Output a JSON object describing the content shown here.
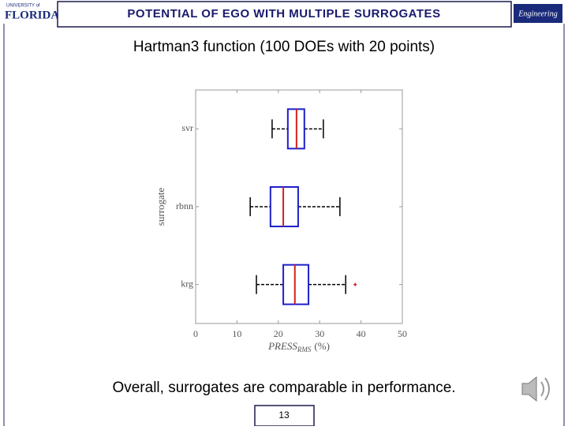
{
  "header": {
    "title": "POTENTIAL OF EGO WITH MULTIPLE SURROGATES",
    "logo_left_top": "UNIVERSITY of",
    "logo_left_main": "FLORIDA",
    "logo_right": "Engineering"
  },
  "subtitle": "Hartman3 function (100 DOEs with 20 points)",
  "conclusion": "Overall, surrogates are comparable in performance.",
  "page_number": "13",
  "chart_data": {
    "type": "boxplot",
    "orientation": "horizontal",
    "ylabel": "surrogate",
    "xlabel": {
      "main": "PRESS",
      "sub": "RMS",
      "unit": "(%)"
    },
    "categories": [
      "svr",
      "rbnn",
      "krg"
    ],
    "stats": [
      {
        "whislo": 18.5,
        "q1": 22.3,
        "med": 24.4,
        "q3": 26.3,
        "whishi": 30.9,
        "fliers": []
      },
      {
        "whislo": 13.2,
        "q1": 18.1,
        "med": 21.2,
        "q3": 24.8,
        "whishi": 34.9,
        "fliers": []
      },
      {
        "whislo": 14.7,
        "q1": 21.2,
        "med": 24.0,
        "q3": 27.3,
        "whishi": 36.3,
        "fliers": [
          38.6
        ]
      }
    ],
    "box_color": "#1f1fcc",
    "median_color": "#d42020",
    "whisker_color": "#000000",
    "flier_color": "#d42020",
    "xlim": [
      0,
      50
    ],
    "xticks": [
      0,
      10,
      20,
      30,
      40,
      50
    ]
  }
}
